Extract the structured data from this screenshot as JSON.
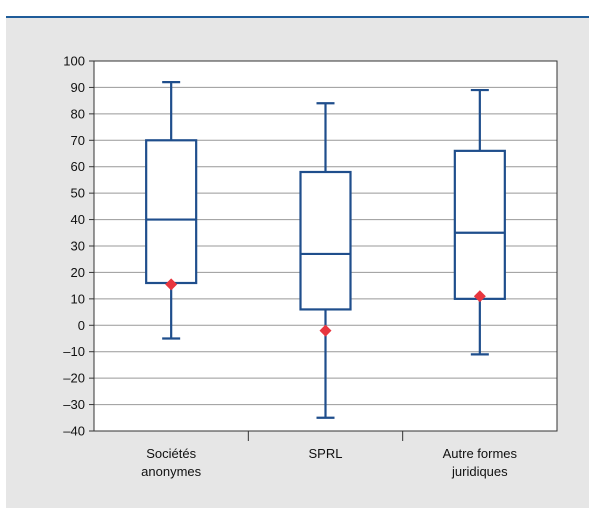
{
  "chart_data": {
    "type": "boxplot",
    "categories": [
      [
        "Sociétés",
        "anonymes"
      ],
      [
        "SPRL"
      ],
      [
        "Autre formes",
        "juridiques"
      ]
    ],
    "boxes": [
      {
        "whisker_low": -5,
        "q1": 16,
        "median": 40,
        "q3": 70,
        "whisker_high": 92,
        "mean": 15.5
      },
      {
        "whisker_low": -35,
        "q1": 6,
        "median": 27,
        "q3": 58,
        "whisker_high": 84,
        "mean": -2
      },
      {
        "whisker_low": -11,
        "q1": 10,
        "median": 35,
        "q3": 66,
        "whisker_high": 89,
        "mean": 11
      }
    ],
    "ylim": [
      -40,
      100
    ],
    "yticks": [
      -40,
      -30,
      -20,
      -10,
      0,
      10,
      20,
      30,
      40,
      50,
      60,
      70,
      80,
      90,
      100
    ],
    "ytick_labels": [
      "–40",
      "–30",
      "–20",
      "–10",
      "0",
      "10",
      "20",
      "30",
      "40",
      "50",
      "60",
      "70",
      "80",
      "90",
      "100"
    ],
    "grid": true,
    "colors": {
      "box": "#1f4e8c",
      "mean_marker": "#e8363f",
      "grid": "#999999",
      "panel": "#e6e6e6",
      "top_rule": "#1f5c99"
    }
  }
}
